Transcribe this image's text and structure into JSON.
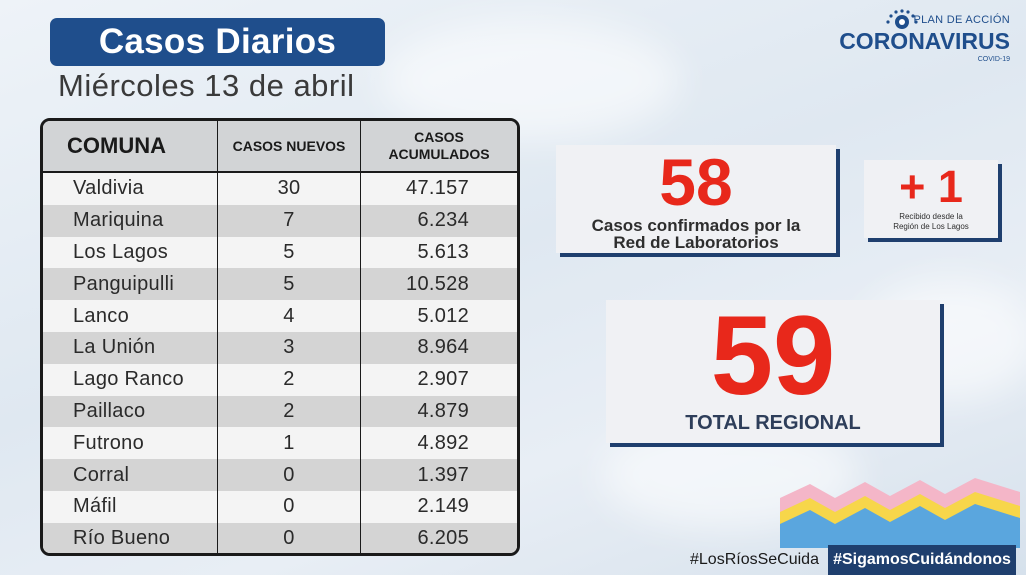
{
  "header": {
    "title": "Casos Diarios",
    "date": "Miércoles 13 de abril"
  },
  "logo": {
    "top": "PLAN DE ACCIÓN",
    "main": "CORONAVIRUS",
    "sub": "COVID-19"
  },
  "table": {
    "headers": {
      "comuna": "COMUNA",
      "nuevos": "CASOS NUEVOS",
      "acumulados_1": "CASOS",
      "acumulados_2": "ACUMULADOS"
    },
    "rows": [
      {
        "comuna": "Valdivia",
        "nuevos": "30",
        "acumulados": "47.157"
      },
      {
        "comuna": "Mariquina",
        "nuevos": "7",
        "acumulados": "6.234"
      },
      {
        "comuna": "Los Lagos",
        "nuevos": "5",
        "acumulados": "5.613"
      },
      {
        "comuna": "Panguipulli",
        "nuevos": "5",
        "acumulados": "10.528"
      },
      {
        "comuna": "Lanco",
        "nuevos": "4",
        "acumulados": "5.012"
      },
      {
        "comuna": "La Unión",
        "nuevos": "3",
        "acumulados": "8.964"
      },
      {
        "comuna": "Lago Ranco",
        "nuevos": "2",
        "acumulados": "2.907"
      },
      {
        "comuna": "Paillaco",
        "nuevos": "2",
        "acumulados": "4.879"
      },
      {
        "comuna": "Futrono",
        "nuevos": "1",
        "acumulados": "4.892"
      },
      {
        "comuna": "Corral",
        "nuevos": "0",
        "acumulados": "1.397"
      },
      {
        "comuna": "Máfil",
        "nuevos": "0",
        "acumulados": "2.149"
      },
      {
        "comuna": "Río Bueno",
        "nuevos": "0",
        "acumulados": "6.205"
      }
    ]
  },
  "cards": {
    "lab": {
      "value": "58",
      "label_1": "Casos confirmados  por la",
      "label_2": "Red de Laboratorios"
    },
    "other": {
      "value": "+ 1",
      "label_1": "Recibido desde la",
      "label_2": "Región de Los Lagos"
    },
    "total": {
      "value": "59",
      "label": "TOTAL REGIONAL"
    }
  },
  "tags": {
    "tag1": "#LosRíosSeCuida",
    "tag2": "#SigamosCuidándonos"
  },
  "colors": {
    "brand_blue": "#1f4e8c",
    "accent_red": "#e8281b",
    "navy": "#1f3f6e"
  }
}
